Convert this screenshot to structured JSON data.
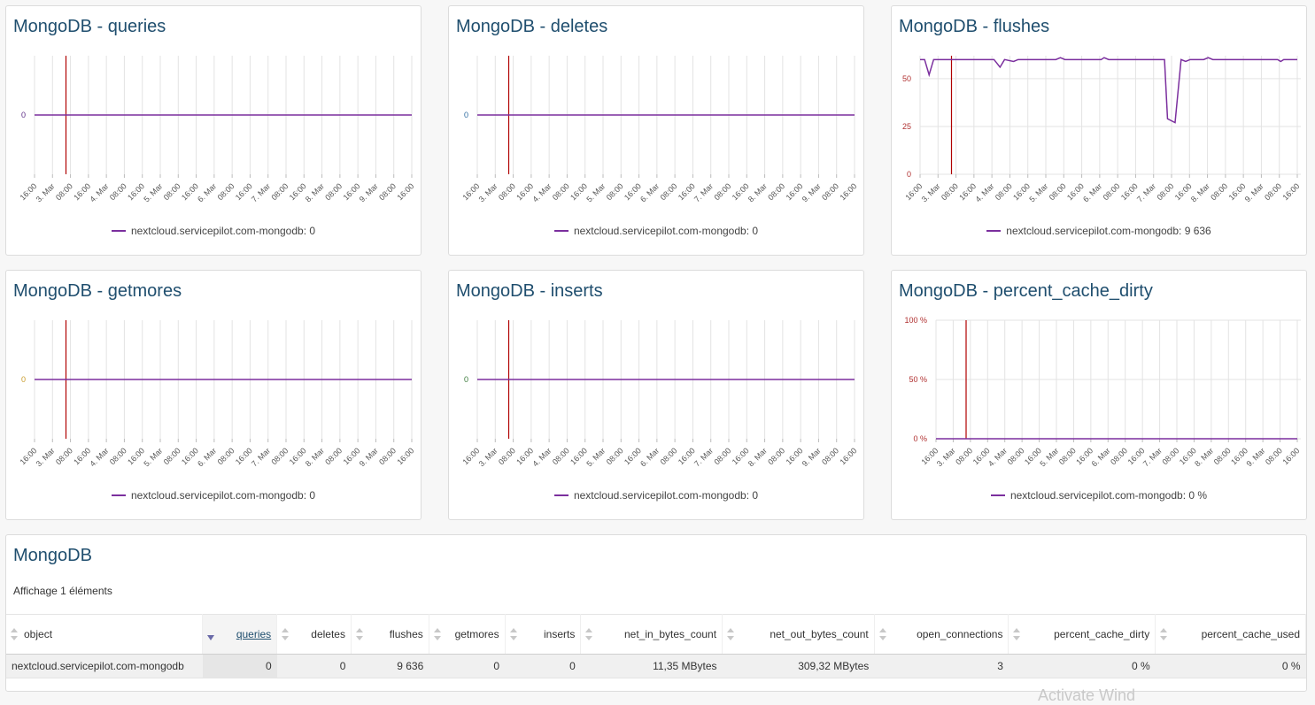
{
  "charts": [
    {
      "title": "MongoDB - queries",
      "legend": "nextcloud.servicepilot.com-mongodb: 0",
      "y_ticks": [
        "0"
      ],
      "y_tick_color": "#5b2a86"
    },
    {
      "title": "MongoDB - deletes",
      "legend": "nextcloud.servicepilot.com-mongodb: 0",
      "y_ticks": [
        "0"
      ],
      "y_tick_color": "#2d6aa0"
    },
    {
      "title": "MongoDB - flushes",
      "legend": "nextcloud.servicepilot.com-mongodb: 9 636",
      "y_ticks": [
        "0",
        "25",
        "50"
      ],
      "y_tick_color": "#b03030"
    },
    {
      "title": "MongoDB - getmores",
      "legend": "nextcloud.servicepilot.com-mongodb: 0",
      "y_ticks": [
        "0"
      ],
      "y_tick_color": "#c89a2a"
    },
    {
      "title": "MongoDB - inserts",
      "legend": "nextcloud.servicepilot.com-mongodb: 0",
      "y_ticks": [
        "0"
      ],
      "y_tick_color": "#3a7a3a"
    },
    {
      "title": "MongoDB - percent_cache_dirty",
      "legend": "nextcloud.servicepilot.com-mongodb: 0 %",
      "y_ticks": [
        "0 %",
        "50 %",
        "100 %"
      ],
      "y_tick_color": "#b03030"
    }
  ],
  "x_ticks": [
    "16:00",
    "3. Mar",
    "08:00",
    "16:00",
    "4. Mar",
    "08:00",
    "16:00",
    "5. Mar",
    "08:00",
    "16:00",
    "6. Mar",
    "08:00",
    "16:00",
    "7. Mar",
    "08:00",
    "16:00",
    "8. Mar",
    "08:00",
    "16:00",
    "9. Mar",
    "08:00",
    "16:00"
  ],
  "chart_data": [
    {
      "type": "line",
      "title": "MongoDB - queries",
      "series": [
        {
          "name": "nextcloud.servicepilot.com-mongodb",
          "values": [
            0,
            0,
            0,
            0,
            0,
            0,
            0,
            0,
            0,
            0,
            0,
            0,
            0,
            0,
            0,
            0,
            0,
            0,
            0,
            0,
            0,
            0
          ]
        }
      ],
      "ylim": [
        0,
        1
      ]
    },
    {
      "type": "line",
      "title": "MongoDB - deletes",
      "series": [
        {
          "name": "nextcloud.servicepilot.com-mongodb",
          "values": [
            0,
            0,
            0,
            0,
            0,
            0,
            0,
            0,
            0,
            0,
            0,
            0,
            0,
            0,
            0,
            0,
            0,
            0,
            0,
            0,
            0,
            0
          ]
        }
      ],
      "ylim": [
        0,
        1
      ]
    },
    {
      "type": "line",
      "title": "MongoDB - flushes",
      "series": [
        {
          "name": "nextcloud.servicepilot.com-mongodb",
          "points": [
            [
              0,
              60
            ],
            [
              0.3,
              60
            ],
            [
              0.6,
              52
            ],
            [
              0.9,
              60
            ],
            [
              4,
              60
            ],
            [
              4.9,
              60
            ],
            [
              5.3,
              56
            ],
            [
              5.6,
              60
            ],
            [
              6.2,
              59
            ],
            [
              6.5,
              60
            ],
            [
              9,
              60
            ],
            [
              9.3,
              61
            ],
            [
              9.6,
              60
            ],
            [
              12,
              60
            ],
            [
              12.2,
              61
            ],
            [
              12.5,
              60
            ],
            [
              16.2,
              60
            ],
            [
              16.4,
              29
            ],
            [
              16.9,
              27
            ],
            [
              17.3,
              60
            ],
            [
              17.6,
              59
            ],
            [
              17.9,
              60
            ],
            [
              18.8,
              60
            ],
            [
              19.1,
              61
            ],
            [
              19.4,
              60
            ],
            [
              22,
              60
            ],
            [
              23.7,
              60
            ],
            [
              23.9,
              59
            ],
            [
              24.1,
              60
            ],
            [
              25,
              60
            ]
          ]
        }
      ],
      "ylim": [
        0,
        62
      ]
    },
    {
      "type": "line",
      "title": "MongoDB - getmores",
      "series": [
        {
          "name": "nextcloud.servicepilot.com-mongodb",
          "values": [
            0,
            0,
            0,
            0,
            0,
            0,
            0,
            0,
            0,
            0,
            0,
            0,
            0,
            0,
            0,
            0,
            0,
            0,
            0,
            0,
            0,
            0
          ]
        }
      ],
      "ylim": [
        0,
        1
      ]
    },
    {
      "type": "line",
      "title": "MongoDB - inserts",
      "series": [
        {
          "name": "nextcloud.servicepilot.com-mongodb",
          "values": [
            0,
            0,
            0,
            0,
            0,
            0,
            0,
            0,
            0,
            0,
            0,
            0,
            0,
            0,
            0,
            0,
            0,
            0,
            0,
            0,
            0,
            0
          ]
        }
      ],
      "ylim": [
        0,
        1
      ]
    },
    {
      "type": "line",
      "title": "MongoDB - percent_cache_dirty",
      "series": [
        {
          "name": "nextcloud.servicepilot.com-mongodb",
          "values": [
            0,
            0,
            0,
            0,
            0,
            0,
            0,
            0,
            0,
            0,
            0,
            0,
            0,
            0,
            0,
            0,
            0,
            0,
            0,
            0,
            0,
            0
          ]
        }
      ],
      "ylim": [
        0,
        100
      ]
    }
  ],
  "table": {
    "title": "MongoDB",
    "subtitle": "Affichage 1 éléments",
    "columns": [
      "object",
      "queries",
      "deletes",
      "flushes",
      "getmores",
      "inserts",
      "net_in_bytes_count",
      "net_out_bytes_count",
      "open_connections",
      "percent_cache_dirty",
      "percent_cache_used"
    ],
    "sorted_column": "queries",
    "rows": [
      [
        "nextcloud.servicepilot.com-mongodb",
        "0",
        "0",
        "9 636",
        "0",
        "0",
        "11,35 MBytes",
        "309,32 MBytes",
        "3",
        "0 %",
        "0 %"
      ]
    ]
  },
  "colors": {
    "series": "#7b2f9e",
    "marker": "#b00000",
    "grid": "#e3e3e3",
    "title": "#1f4e6e"
  },
  "watermark": "Activate Wind"
}
